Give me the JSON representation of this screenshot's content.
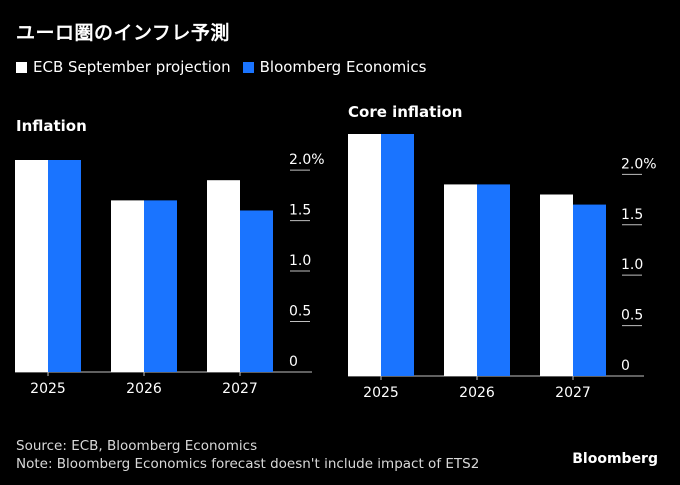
{
  "title": "ユーロ圏のインフレ予測",
  "legend": [
    {
      "label": "ECB September projection",
      "color": "#ffffff"
    },
    {
      "label": "Bloomberg Economics",
      "color": "#1a74ff"
    }
  ],
  "chart_data": [
    {
      "type": "bar",
      "title": "Inflation",
      "categories": [
        "2025",
        "2026",
        "2027"
      ],
      "series": [
        {
          "name": "ECB September projection",
          "values": [
            2.1,
            1.7,
            1.9
          ]
        },
        {
          "name": "Bloomberg Economics",
          "values": [
            2.1,
            1.7,
            1.6
          ]
        }
      ],
      "yticks": [
        "2.0%",
        "1.5",
        "1.0",
        "0.5",
        "0"
      ],
      "ylim": [
        0,
        2.1
      ],
      "axis_position": "right"
    },
    {
      "type": "bar",
      "title": "Core inflation",
      "categories": [
        "2025",
        "2026",
        "2027"
      ],
      "series": [
        {
          "name": "ECB September projection",
          "values": [
            2.4,
            1.9,
            1.8
          ]
        },
        {
          "name": "Bloomberg Economics",
          "values": [
            2.4,
            1.9,
            1.7
          ]
        }
      ],
      "yticks": [
        "2.0%",
        "1.5",
        "1.0",
        "0.5",
        "0"
      ],
      "ylim": [
        0,
        2.4
      ],
      "axis_position": "right"
    }
  ],
  "source": "Source: ECB, Bloomberg Economics",
  "note": "Note: Bloomberg Economics forecast doesn't include impact of ETS2",
  "brand": "Bloomberg"
}
